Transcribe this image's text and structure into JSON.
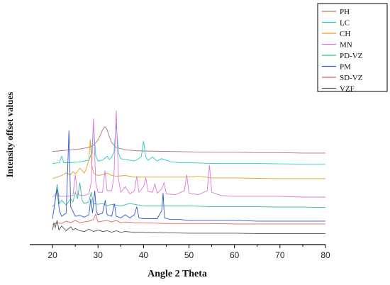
{
  "chart_data": {
    "type": "line",
    "title": "",
    "xlabel": "Angle 2 Theta",
    "ylabel": "Intensity offset values",
    "xlim": [
      15,
      80
    ],
    "xticks": [
      20,
      30,
      40,
      50,
      60,
      70,
      80
    ],
    "yticks": [],
    "grid": false,
    "legend_position": "top-right",
    "series": [
      {
        "name": "PH",
        "color": "#b07070",
        "baseline": 10.0,
        "x": [
          20,
          22,
          24,
          26,
          28,
          29,
          30,
          30.5,
          31,
          31.5,
          32,
          32.5,
          33,
          34,
          36,
          38,
          40,
          45,
          50,
          55,
          60,
          65,
          70,
          75,
          80
        ],
        "y": [
          0.3,
          0.4,
          0.5,
          0.6,
          0.8,
          1.1,
          1.7,
          2.3,
          3.0,
          3.4,
          3.0,
          2.1,
          1.4,
          0.8,
          0.5,
          0.4,
          0.35,
          0.3,
          0.25,
          0.2,
          0.2,
          0.15,
          0.15,
          0.1,
          0.1
        ]
      },
      {
        "name": "LC",
        "color": "#22cccc",
        "baseline": 8.6,
        "x": [
          20,
          21.5,
          22,
          22.5,
          24,
          26,
          28,
          28.6,
          29,
          29.5,
          30,
          31,
          32,
          32.5,
          33,
          33.5,
          34,
          34.5,
          35,
          36,
          38,
          39.5,
          40,
          40.5,
          41,
          42,
          43,
          44,
          46,
          48,
          50,
          55,
          60,
          65,
          70,
          75,
          80
        ],
        "y": [
          0.2,
          0.3,
          1.1,
          0.3,
          0.3,
          0.4,
          0.6,
          1.5,
          5.0,
          1.2,
          0.5,
          0.6,
          1.1,
          0.7,
          1.0,
          1.6,
          5.2,
          1.5,
          0.8,
          0.7,
          0.5,
          1.0,
          3.0,
          1.0,
          0.6,
          1.0,
          0.5,
          0.8,
          0.4,
          0.3,
          0.3,
          0.2,
          0.2,
          0.2,
          0.15,
          0.1,
          0.1
        ]
      },
      {
        "name": "CH",
        "color": "#e6a020",
        "baseline": 6.8,
        "x": [
          20,
          21,
          22,
          23,
          24,
          24.5,
          25,
          25.5,
          26,
          27,
          27.5,
          28,
          28.3,
          28.6,
          29,
          30,
          31,
          32,
          33,
          34,
          36,
          38,
          40,
          45,
          50,
          52,
          55,
          60,
          65,
          70,
          75,
          80
        ],
        "y": [
          0.1,
          0.3,
          0.5,
          0.8,
          0.6,
          1.0,
          0.7,
          1.0,
          1.4,
          0.8,
          1.5,
          2.5,
          5.0,
          2.0,
          0.8,
          0.5,
          0.6,
          0.8,
          0.5,
          0.4,
          0.5,
          0.3,
          0.3,
          0.3,
          0.3,
          0.4,
          0.2,
          0.2,
          0.15,
          0.1,
          0.1,
          0.1
        ]
      },
      {
        "name": "MN",
        "color": "#dd77dd",
        "baseline": 4.4,
        "x": [
          20,
          20.5,
          21,
          21.5,
          23,
          24.5,
          25,
          25.5,
          27,
          28,
          28.5,
          29,
          29.5,
          30,
          31,
          31.5,
          32,
          33,
          33.5,
          34,
          34.5,
          35,
          36,
          37,
          38,
          38.5,
          39,
          40,
          40.5,
          41,
          42,
          42.5,
          43,
          44,
          44.5,
          45,
          47,
          49,
          49.5,
          50,
          52,
          54,
          54.5,
          55,
          57,
          60,
          65,
          70,
          75,
          80
        ],
        "y": [
          0.2,
          0.4,
          1.2,
          0.3,
          0.3,
          0.4,
          3.0,
          0.5,
          0.4,
          0.6,
          2.0,
          10.0,
          2.0,
          0.8,
          0.8,
          3.5,
          1.0,
          1.0,
          2.8,
          11.0,
          2.5,
          0.8,
          1.5,
          0.6,
          1.0,
          2.8,
          0.8,
          1.5,
          2.6,
          0.9,
          0.8,
          1.9,
          0.7,
          1.2,
          2.0,
          0.6,
          0.5,
          1.0,
          3.0,
          0.7,
          0.5,
          1.0,
          4.2,
          0.8,
          0.4,
          0.3,
          0.3,
          0.3,
          0.2,
          0.2
        ]
      },
      {
        "name": "PD-VZ",
        "color": "#33bb99",
        "baseline": 3.2,
        "x": [
          20,
          20.5,
          21,
          21.5,
          22,
          23,
          24,
          24.5,
          25,
          25.5,
          26,
          26.5,
          27,
          28,
          28.5,
          29,
          30,
          31,
          32,
          33,
          35,
          37,
          40,
          45,
          50,
          55,
          60,
          65,
          70,
          75,
          80
        ],
        "y": [
          0.2,
          0.5,
          3.0,
          0.6,
          1.0,
          0.4,
          1.2,
          0.8,
          2.0,
          1.2,
          3.2,
          1.0,
          0.6,
          0.8,
          2.0,
          0.6,
          0.5,
          0.6,
          0.3,
          0.5,
          0.3,
          0.6,
          0.3,
          0.3,
          0.3,
          0.2,
          0.2,
          0.2,
          0.15,
          0.15,
          0.1
        ]
      },
      {
        "name": "PM",
        "color": "#3355cc",
        "baseline": 1.4,
        "x": [
          20,
          20.5,
          21,
          21.5,
          22,
          23,
          23.3,
          23.6,
          24,
          25,
          26,
          27,
          28,
          28.4,
          28.8,
          29.3,
          29.6,
          30,
          31,
          31.6,
          32,
          33,
          33.6,
          34,
          35,
          36,
          37,
          38,
          38.5,
          39,
          40,
          41,
          43,
          44,
          44.3,
          44.6,
          46,
          48,
          50,
          55,
          60,
          65,
          70,
          75,
          80
        ],
        "y": [
          0.5,
          2.5,
          4.2,
          1.5,
          0.8,
          1.2,
          6.0,
          11.5,
          2.0,
          0.8,
          0.9,
          0.7,
          1.0,
          3.0,
          1.2,
          4.0,
          1.5,
          1.0,
          1.2,
          2.8,
          1.0,
          0.8,
          2.4,
          0.8,
          0.6,
          1.0,
          0.6,
          1.0,
          2.0,
          0.6,
          0.5,
          0.5,
          0.5,
          1.5,
          3.7,
          0.6,
          0.4,
          0.4,
          0.3,
          0.3,
          0.3,
          0.2,
          0.2,
          0.2,
          0.2
        ]
      },
      {
        "name": "SD-VZ",
        "color": "#dd6666",
        "baseline": 1.2,
        "x": [
          20,
          21,
          22,
          23,
          24,
          25,
          26,
          27,
          28,
          29,
          29.5,
          30,
          31,
          32,
          33,
          34,
          35,
          36,
          38,
          40,
          45,
          50,
          55,
          60,
          65,
          70,
          75,
          80
        ],
        "y": [
          0.0,
          0.2,
          0.1,
          0.4,
          0.2,
          0.5,
          0.2,
          0.3,
          0.4,
          0.6,
          1.3,
          0.3,
          0.4,
          0.5,
          0.3,
          0.5,
          0.2,
          0.3,
          0.2,
          0.2,
          0.1,
          0.1,
          0.1,
          0.05,
          0.05,
          0.05,
          0.05,
          0.05
        ]
      },
      {
        "name": "VZF",
        "color": "#555555",
        "baseline": 0.0,
        "x": [
          20,
          20.3,
          20.6,
          21,
          21.4,
          22,
          23,
          24,
          24.5,
          25,
          26,
          27,
          28,
          29,
          30,
          31,
          32,
          33,
          34,
          35,
          36,
          38,
          40,
          45,
          50,
          55,
          60,
          65,
          70,
          75,
          80
        ],
        "y": [
          0.5,
          1.4,
          0.8,
          1.7,
          0.5,
          1.0,
          0.4,
          0.9,
          0.5,
          0.7,
          0.4,
          0.3,
          0.6,
          0.3,
          0.5,
          0.3,
          0.4,
          0.2,
          0.4,
          0.2,
          0.3,
          0.2,
          0.2,
          0.15,
          0.1,
          0.1,
          0.1,
          0.05,
          0.05,
          0.05,
          0.05
        ]
      }
    ]
  }
}
